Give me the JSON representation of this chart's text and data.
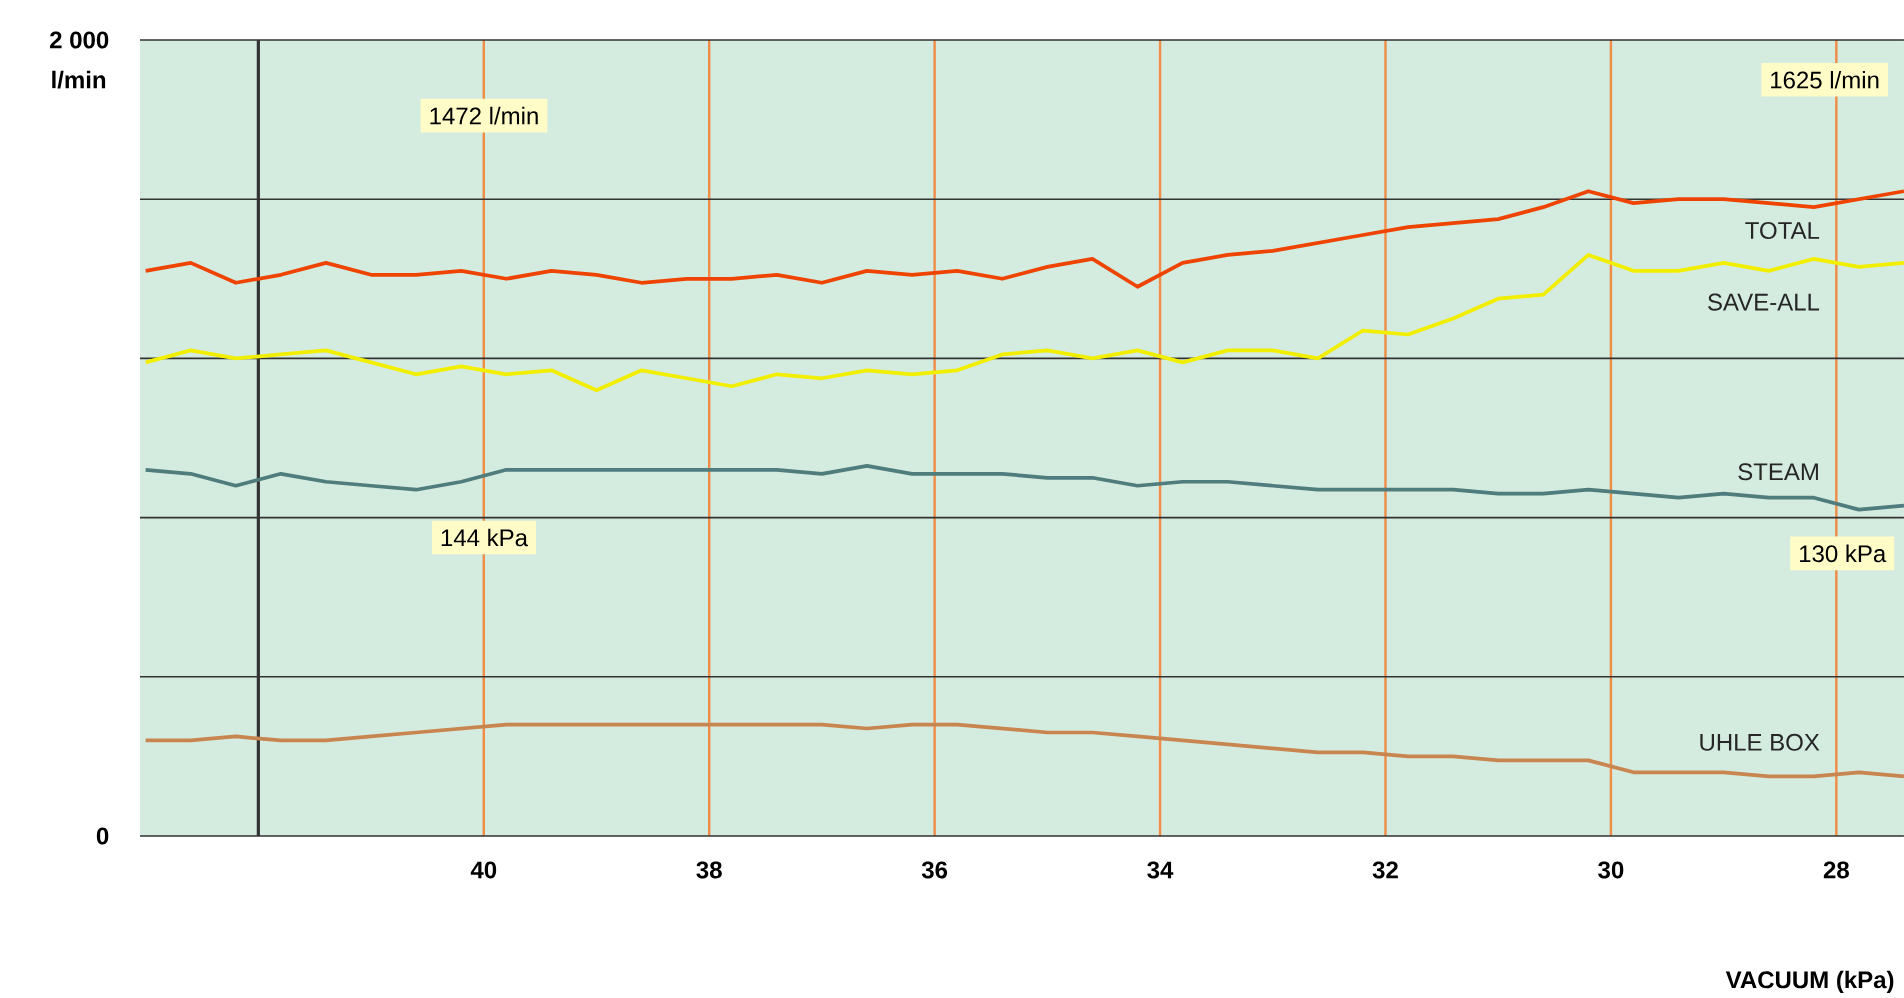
{
  "chart_data": {
    "type": "line",
    "xlabel": "VACUUM (kPa)",
    "ylabel": "l/min",
    "x": [
      43.0,
      42.6,
      42.2,
      41.8,
      41.4,
      41.0,
      40.6,
      40.2,
      39.8,
      39.4,
      39.0,
      38.6,
      38.2,
      37.8,
      37.4,
      37.0,
      36.6,
      36.2,
      35.8,
      35.4,
      35.0,
      34.6,
      34.2,
      33.8,
      33.4,
      33.0,
      32.6,
      32.2,
      31.8,
      31.4,
      31.0,
      30.6,
      30.2,
      29.8,
      29.4,
      29.0,
      28.6,
      28.2,
      27.8,
      27.4
    ],
    "series": [
      {
        "name": "TOTAL",
        "color": "#ee4400",
        "values": [
          1420,
          1440,
          1390,
          1410,
          1440,
          1410,
          1410,
          1420,
          1400,
          1420,
          1410,
          1390,
          1400,
          1400,
          1410,
          1390,
          1420,
          1410,
          1420,
          1400,
          1430,
          1450,
          1380,
          1440,
          1460,
          1470,
          1490,
          1510,
          1530,
          1540,
          1550,
          1580,
          1620,
          1590,
          1600,
          1600,
          1590,
          1580,
          1600,
          1620
        ]
      },
      {
        "name": "SAVE-ALL",
        "color": "#f2ee00",
        "values": [
          1190,
          1220,
          1200,
          1210,
          1220,
          1190,
          1160,
          1180,
          1160,
          1170,
          1120,
          1170,
          1150,
          1130,
          1160,
          1150,
          1170,
          1160,
          1170,
          1210,
          1220,
          1200,
          1220,
          1190,
          1220,
          1220,
          1200,
          1270,
          1260,
          1300,
          1350,
          1360,
          1460,
          1420,
          1420,
          1440,
          1420,
          1450,
          1430,
          1440
        ]
      },
      {
        "name": "STEAM",
        "color": "#4f7c7c",
        "values": [
          920,
          910,
          880,
          910,
          890,
          880,
          870,
          890,
          920,
          920,
          920,
          920,
          920,
          920,
          920,
          910,
          930,
          910,
          910,
          910,
          900,
          900,
          880,
          890,
          890,
          880,
          870,
          870,
          870,
          870,
          860,
          860,
          870,
          860,
          850,
          860,
          850,
          850,
          820,
          830
        ]
      },
      {
        "name": "UHLE BOX",
        "color": "#c98550",
        "values": [
          240,
          240,
          250,
          240,
          240,
          250,
          260,
          270,
          280,
          280,
          280,
          280,
          280,
          280,
          280,
          280,
          270,
          280,
          280,
          270,
          260,
          260,
          250,
          240,
          230,
          220,
          210,
          210,
          200,
          200,
          190,
          190,
          190,
          160,
          160,
          160,
          150,
          150,
          160,
          150
        ]
      }
    ],
    "xlim": [
      43.05,
      27.4
    ],
    "xticks": [
      40,
      38,
      36,
      34,
      32,
      30,
      28
    ],
    "ylim": [
      0,
      2000
    ],
    "yticks": [
      0,
      {
        "value": 400,
        "label": null
      },
      {
        "value": 800,
        "label": null
      },
      {
        "value": 1200,
        "label": null
      },
      {
        "value": 1600,
        "label": null
      },
      {
        "value": 2000,
        "label": "2 000"
      }
    ],
    "grid": true,
    "legend": false,
    "marker": "none",
    "line_style": "solid",
    "ref_lines": [
      {
        "axis": "x",
        "value": 42,
        "color": "#333333"
      }
    ],
    "annotations": [
      "1472 l/min",
      "144 kPa",
      "1625 l/min",
      "130 kPa"
    ]
  }
}
